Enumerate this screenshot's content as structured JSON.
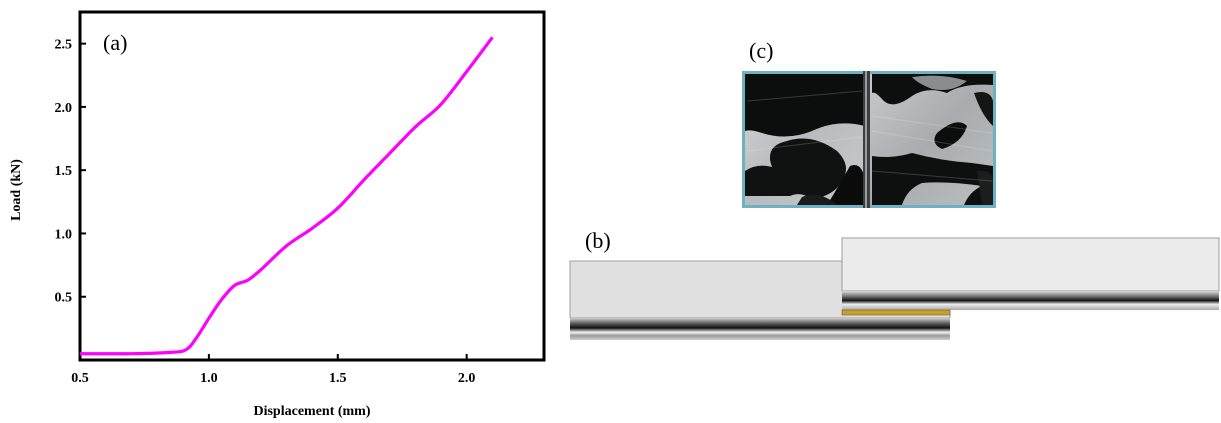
{
  "panels": {
    "a": "(a)",
    "b": "(b)",
    "c": "(c)"
  },
  "colors": {
    "curve": "#ff00ff",
    "adhesive": "#c8a032",
    "axis": "#000000"
  },
  "chart_data": {
    "type": "line",
    "xlabel": "Displacement (mm)",
    "ylabel": "Load (kN)",
    "xlim": [
      0.5,
      2.3
    ],
    "ylim": [
      0.0,
      2.75
    ],
    "xticks": [
      0.5,
      1.0,
      1.5,
      2.0
    ],
    "xtick_labels": [
      "0.5",
      "1.0",
      "1.5",
      "2.0"
    ],
    "yticks": [
      0.5,
      1.0,
      1.5,
      2.0,
      2.5
    ],
    "ytick_labels": [
      "0.5",
      "1.0",
      "1.5",
      "2.0",
      "2.5"
    ],
    "grid": false,
    "series": [
      {
        "x": [
          0.5,
          0.7,
          0.85,
          0.91,
          0.95,
          1.0,
          1.05,
          1.1,
          1.15,
          1.2,
          1.3,
          1.4,
          1.5,
          1.6,
          1.7,
          1.8,
          1.9,
          2.0,
          2.1
        ],
        "y": [
          0.05,
          0.05,
          0.06,
          0.08,
          0.17,
          0.33,
          0.48,
          0.59,
          0.63,
          0.71,
          0.9,
          1.04,
          1.2,
          1.42,
          1.63,
          1.84,
          2.02,
          2.28,
          2.55
        ]
      }
    ]
  }
}
